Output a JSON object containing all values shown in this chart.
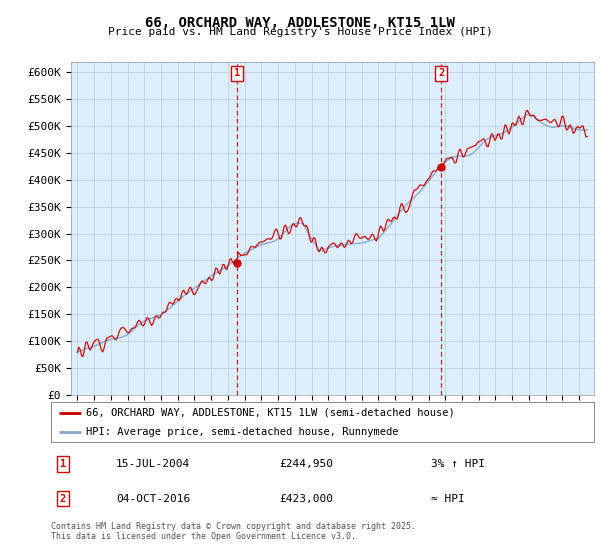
{
  "title": "66, ORCHARD WAY, ADDLESTONE, KT15 1LW",
  "subtitle": "Price paid vs. HM Land Registry's House Price Index (HPI)",
  "ylabel_ticks": [
    "£0",
    "£50K",
    "£100K",
    "£150K",
    "£200K",
    "£250K",
    "£300K",
    "£350K",
    "£400K",
    "£450K",
    "£500K",
    "£550K",
    "£600K"
  ],
  "ylim": [
    0,
    620000
  ],
  "ytick_values": [
    0,
    50000,
    100000,
    150000,
    200000,
    250000,
    300000,
    350000,
    400000,
    450000,
    500000,
    550000,
    600000
  ],
  "legend_entries": [
    "66, ORCHARD WAY, ADDLESTONE, KT15 1LW (semi-detached house)",
    "HPI: Average price, semi-detached house, Runnymede"
  ],
  "marker1_label": "1",
  "marker1_date": "15-JUL-2004",
  "marker1_price": 244950,
  "marker1_info": "3% ↑ HPI",
  "marker2_label": "2",
  "marker2_date": "04-OCT-2016",
  "marker2_price": 423000,
  "marker2_info": "≈ HPI",
  "footer": "Contains HM Land Registry data © Crown copyright and database right 2025.\nThis data is licensed under the Open Government Licence v3.0.",
  "line_color_red": "#cc0000",
  "line_color_blue": "#88aacc",
  "background_color": "#ddeeff",
  "marker_box_color": "#cc0000",
  "grid_color": "#bbccdd",
  "sale1_t": 2004.542,
  "sale2_t": 2016.753,
  "years_start": 1995.0,
  "years_end": 2025.5,
  "xlim_left": 1994.6,
  "xlim_right": 2025.9
}
